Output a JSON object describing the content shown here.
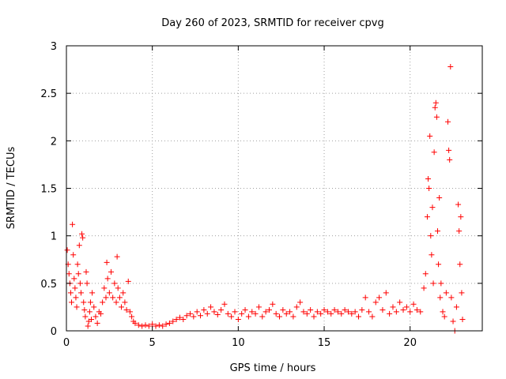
{
  "chart_data": {
    "type": "scatter",
    "title": "Day 260 of 2023, SRMTID for receiver cpvg",
    "xlabel": "GPS time / hours",
    "ylabel": "SRMTID / TECUs",
    "xlim": [
      0,
      24.2
    ],
    "ylim": [
      0,
      3
    ],
    "xticks": [
      0,
      5,
      10,
      15,
      20
    ],
    "xtick_labels": [
      "0",
      "5",
      "10",
      "15",
      "20"
    ],
    "yticks": [
      0,
      0.5,
      1,
      1.5,
      2,
      2.5,
      3
    ],
    "ytick_labels": [
      "0",
      "0.5",
      "1",
      "1.5",
      "2",
      "2.5",
      "3"
    ],
    "grid": true,
    "marker": "+",
    "color": "#ff0000",
    "series": [
      {
        "name": "SRMTID",
        "points": [
          [
            0.05,
            0.85
          ],
          [
            0.1,
            0.7
          ],
          [
            0.15,
            0.6
          ],
          [
            0.2,
            0.5
          ],
          [
            0.25,
            0.4
          ],
          [
            0.3,
            0.3
          ],
          [
            0.35,
            1.12
          ],
          [
            0.4,
            0.8
          ],
          [
            0.45,
            0.55
          ],
          [
            0.5,
            0.45
          ],
          [
            0.55,
            0.35
          ],
          [
            0.6,
            0.25
          ],
          [
            0.65,
            0.7
          ],
          [
            0.7,
            0.6
          ],
          [
            0.75,
            0.9
          ],
          [
            0.8,
            0.5
          ],
          [
            0.85,
            0.4
          ],
          [
            0.9,
            1.02
          ],
          [
            0.95,
            0.98
          ],
          [
            1.0,
            0.3
          ],
          [
            1.05,
            0.22
          ],
          [
            1.1,
            0.15
          ],
          [
            1.15,
            0.62
          ],
          [
            1.2,
            0.5
          ],
          [
            1.25,
            0.05
          ],
          [
            1.3,
            0.1
          ],
          [
            1.35,
            0.2
          ],
          [
            1.4,
            0.3
          ],
          [
            1.45,
            0.12
          ],
          [
            1.5,
            0.4
          ],
          [
            1.6,
            0.25
          ],
          [
            1.7,
            0.15
          ],
          [
            1.8,
            0.08
          ],
          [
            1.9,
            0.2
          ],
          [
            2.0,
            0.18
          ],
          [
            2.1,
            0.3
          ],
          [
            2.2,
            0.45
          ],
          [
            2.3,
            0.35
          ],
          [
            2.35,
            0.72
          ],
          [
            2.4,
            0.55
          ],
          [
            2.5,
            0.4
          ],
          [
            2.6,
            0.62
          ],
          [
            2.7,
            0.35
          ],
          [
            2.8,
            0.5
          ],
          [
            2.9,
            0.3
          ],
          [
            2.95,
            0.78
          ],
          [
            3.0,
            0.45
          ],
          [
            3.1,
            0.35
          ],
          [
            3.2,
            0.25
          ],
          [
            3.3,
            0.4
          ],
          [
            3.4,
            0.3
          ],
          [
            3.5,
            0.22
          ],
          [
            3.6,
            0.52
          ],
          [
            3.7,
            0.2
          ],
          [
            3.8,
            0.15
          ],
          [
            3.9,
            0.1
          ],
          [
            4.0,
            0.08
          ],
          [
            4.2,
            0.06
          ],
          [
            4.4,
            0.05
          ],
          [
            4.6,
            0.06
          ],
          [
            4.8,
            0.05
          ],
          [
            5.0,
            0.07
          ],
          [
            5.2,
            0.05
          ],
          [
            5.4,
            0.06
          ],
          [
            5.6,
            0.05
          ],
          [
            5.8,
            0.07
          ],
          [
            6.0,
            0.08
          ],
          [
            6.2,
            0.1
          ],
          [
            6.4,
            0.12
          ],
          [
            6.6,
            0.14
          ],
          [
            6.8,
            0.12
          ],
          [
            7.0,
            0.16
          ],
          [
            7.2,
            0.18
          ],
          [
            7.4,
            0.15
          ],
          [
            7.6,
            0.2
          ],
          [
            7.8,
            0.16
          ],
          [
            8.0,
            0.22
          ],
          [
            8.2,
            0.18
          ],
          [
            8.4,
            0.25
          ],
          [
            8.6,
            0.2
          ],
          [
            8.8,
            0.17
          ],
          [
            9.0,
            0.22
          ],
          [
            9.2,
            0.28
          ],
          [
            9.4,
            0.18
          ],
          [
            9.6,
            0.15
          ],
          [
            9.8,
            0.2
          ],
          [
            10.0,
            0.12
          ],
          [
            10.2,
            0.18
          ],
          [
            10.4,
            0.22
          ],
          [
            10.6,
            0.15
          ],
          [
            10.8,
            0.2
          ],
          [
            11.0,
            0.18
          ],
          [
            11.2,
            0.25
          ],
          [
            11.4,
            0.15
          ],
          [
            11.6,
            0.2
          ],
          [
            11.8,
            0.22
          ],
          [
            12.0,
            0.28
          ],
          [
            12.2,
            0.18
          ],
          [
            12.4,
            0.15
          ],
          [
            12.6,
            0.22
          ],
          [
            12.8,
            0.18
          ],
          [
            13.0,
            0.2
          ],
          [
            13.2,
            0.15
          ],
          [
            13.4,
            0.25
          ],
          [
            13.6,
            0.3
          ],
          [
            13.8,
            0.2
          ],
          [
            14.0,
            0.18
          ],
          [
            14.2,
            0.22
          ],
          [
            14.4,
            0.15
          ],
          [
            14.6,
            0.2
          ],
          [
            14.8,
            0.18
          ],
          [
            15.0,
            0.22
          ],
          [
            15.2,
            0.2
          ],
          [
            15.4,
            0.18
          ],
          [
            15.6,
            0.22
          ],
          [
            15.8,
            0.2
          ],
          [
            16.0,
            0.18
          ],
          [
            16.2,
            0.22
          ],
          [
            16.4,
            0.2
          ],
          [
            16.6,
            0.18
          ],
          [
            16.8,
            0.2
          ],
          [
            17.0,
            0.15
          ],
          [
            17.2,
            0.22
          ],
          [
            17.4,
            0.35
          ],
          [
            17.6,
            0.2
          ],
          [
            17.8,
            0.15
          ],
          [
            18.0,
            0.3
          ],
          [
            18.2,
            0.35
          ],
          [
            18.4,
            0.22
          ],
          [
            18.6,
            0.4
          ],
          [
            18.8,
            0.18
          ],
          [
            19.0,
            0.25
          ],
          [
            19.2,
            0.2
          ],
          [
            19.4,
            0.3
          ],
          [
            19.6,
            0.22
          ],
          [
            19.8,
            0.25
          ],
          [
            20.0,
            0.2
          ],
          [
            20.2,
            0.28
          ],
          [
            20.4,
            0.22
          ],
          [
            20.6,
            0.2
          ],
          [
            20.8,
            0.45
          ],
          [
            20.9,
            0.6
          ],
          [
            21.0,
            1.2
          ],
          [
            21.05,
            1.6
          ],
          [
            21.1,
            1.5
          ],
          [
            21.15,
            2.05
          ],
          [
            21.2,
            1.0
          ],
          [
            21.25,
            0.8
          ],
          [
            21.3,
            1.3
          ],
          [
            21.35,
            0.5
          ],
          [
            21.4,
            1.88
          ],
          [
            21.45,
            2.35
          ],
          [
            21.5,
            2.4
          ],
          [
            21.55,
            2.25
          ],
          [
            21.6,
            1.05
          ],
          [
            21.65,
            0.7
          ],
          [
            21.7,
            1.4
          ],
          [
            21.75,
            0.35
          ],
          [
            21.8,
            0.5
          ],
          [
            21.9,
            0.2
          ],
          [
            22.0,
            0.15
          ],
          [
            22.1,
            0.4
          ],
          [
            22.2,
            2.2
          ],
          [
            22.25,
            1.9
          ],
          [
            22.3,
            1.8
          ],
          [
            22.35,
            2.78
          ],
          [
            22.4,
            0.35
          ],
          [
            22.5,
            0.1
          ],
          [
            22.6,
            0.0
          ],
          [
            22.7,
            0.25
          ],
          [
            22.8,
            1.33
          ],
          [
            22.85,
            1.05
          ],
          [
            22.9,
            0.7
          ],
          [
            22.95,
            1.2
          ],
          [
            23.0,
            0.4
          ],
          [
            23.05,
            0.12
          ]
        ]
      }
    ]
  }
}
